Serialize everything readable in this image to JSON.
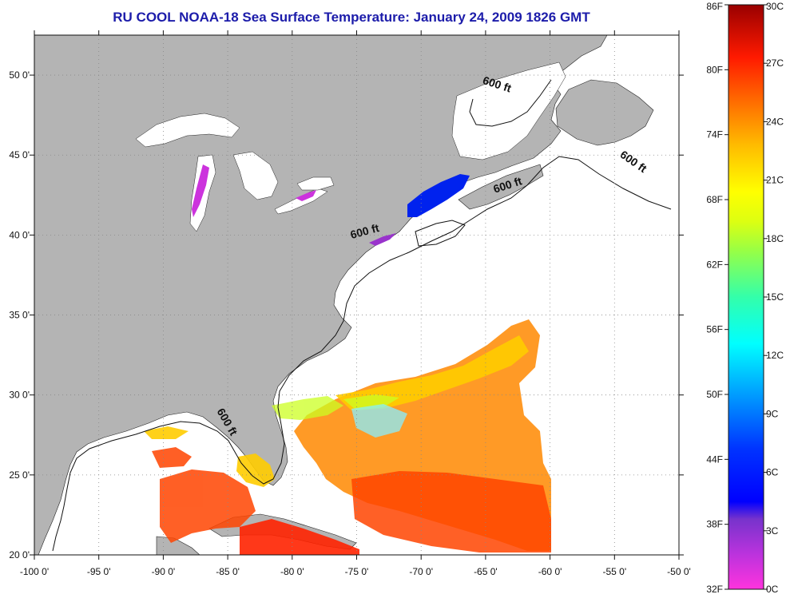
{
  "title": "RU COOL  NOAA-18  Sea Surface Temperature:  January 24, 2009 1826 GMT",
  "chart_data": {
    "type": "map",
    "projection": "equirectangular",
    "lon_range": [
      -100,
      -50
    ],
    "lat_range": [
      20,
      52.5
    ],
    "x_ticks": [
      {
        "value": -100,
        "label": "-100 0'"
      },
      {
        "value": -95,
        "label": "-95 0'"
      },
      {
        "value": -90,
        "label": "-90 0'"
      },
      {
        "value": -85,
        "label": "-85 0'"
      },
      {
        "value": -80,
        "label": "-80 0'"
      },
      {
        "value": -75,
        "label": "-75 0'"
      },
      {
        "value": -70,
        "label": "-70 0'"
      },
      {
        "value": -65,
        "label": "-65 0'"
      },
      {
        "value": -60,
        "label": "-60 0'"
      },
      {
        "value": -55,
        "label": "-55 0'"
      },
      {
        "value": -50,
        "label": "-50 0'"
      }
    ],
    "y_ticks": [
      {
        "value": 20,
        "label": "20 0'"
      },
      {
        "value": 25,
        "label": "25 0'"
      },
      {
        "value": 30,
        "label": "30 0'"
      },
      {
        "value": 35,
        "label": "35 0'"
      },
      {
        "value": 40,
        "label": "40 0'"
      },
      {
        "value": 45,
        "label": "45 0'"
      },
      {
        "value": 50,
        "label": "50 0'"
      }
    ],
    "contour_labels": [
      {
        "text": "600 ft",
        "lon": -64.2,
        "lat": 49.2,
        "angle": 18
      },
      {
        "text": "600 ft",
        "lon": -53.7,
        "lat": 44.4,
        "angle": 35
      },
      {
        "text": "600 ft",
        "lon": -63.2,
        "lat": 42.9,
        "angle": -18
      },
      {
        "text": "600 ft",
        "lon": -74.3,
        "lat": 40.0,
        "angle": -15
      },
      {
        "text": "600 ft",
        "lon": -85.3,
        "lat": 28.2,
        "angle": 60
      }
    ],
    "colorbar": {
      "fahrenheit": {
        "min": 32,
        "max": 86,
        "ticks": [
          "86F",
          "80F",
          "74F",
          "68F",
          "62F",
          "56F",
          "50F",
          "44F",
          "38F",
          "32F"
        ]
      },
      "celsius": {
        "min": 0,
        "max": 30,
        "ticks": [
          "30C",
          "27C",
          "24C",
          "21C",
          "18C",
          "15C",
          "12C",
          "9C",
          "6C",
          "3C",
          "0C"
        ]
      },
      "colors_bottom_to_top": [
        "#ff33dd",
        "#aa33dd",
        "#7733cc",
        "#0000ff",
        "#0077ff",
        "#00eeff",
        "#66ff99",
        "#ccff22",
        "#ffff00",
        "#ffbb00",
        "#ff6600",
        "#ff2200",
        "#cc0000",
        "#990000"
      ]
    },
    "colors": {
      "land": "#b4b4b4",
      "water_no_data": "#ffffff",
      "grid": "#888888",
      "title": "#1c1caa"
    }
  }
}
